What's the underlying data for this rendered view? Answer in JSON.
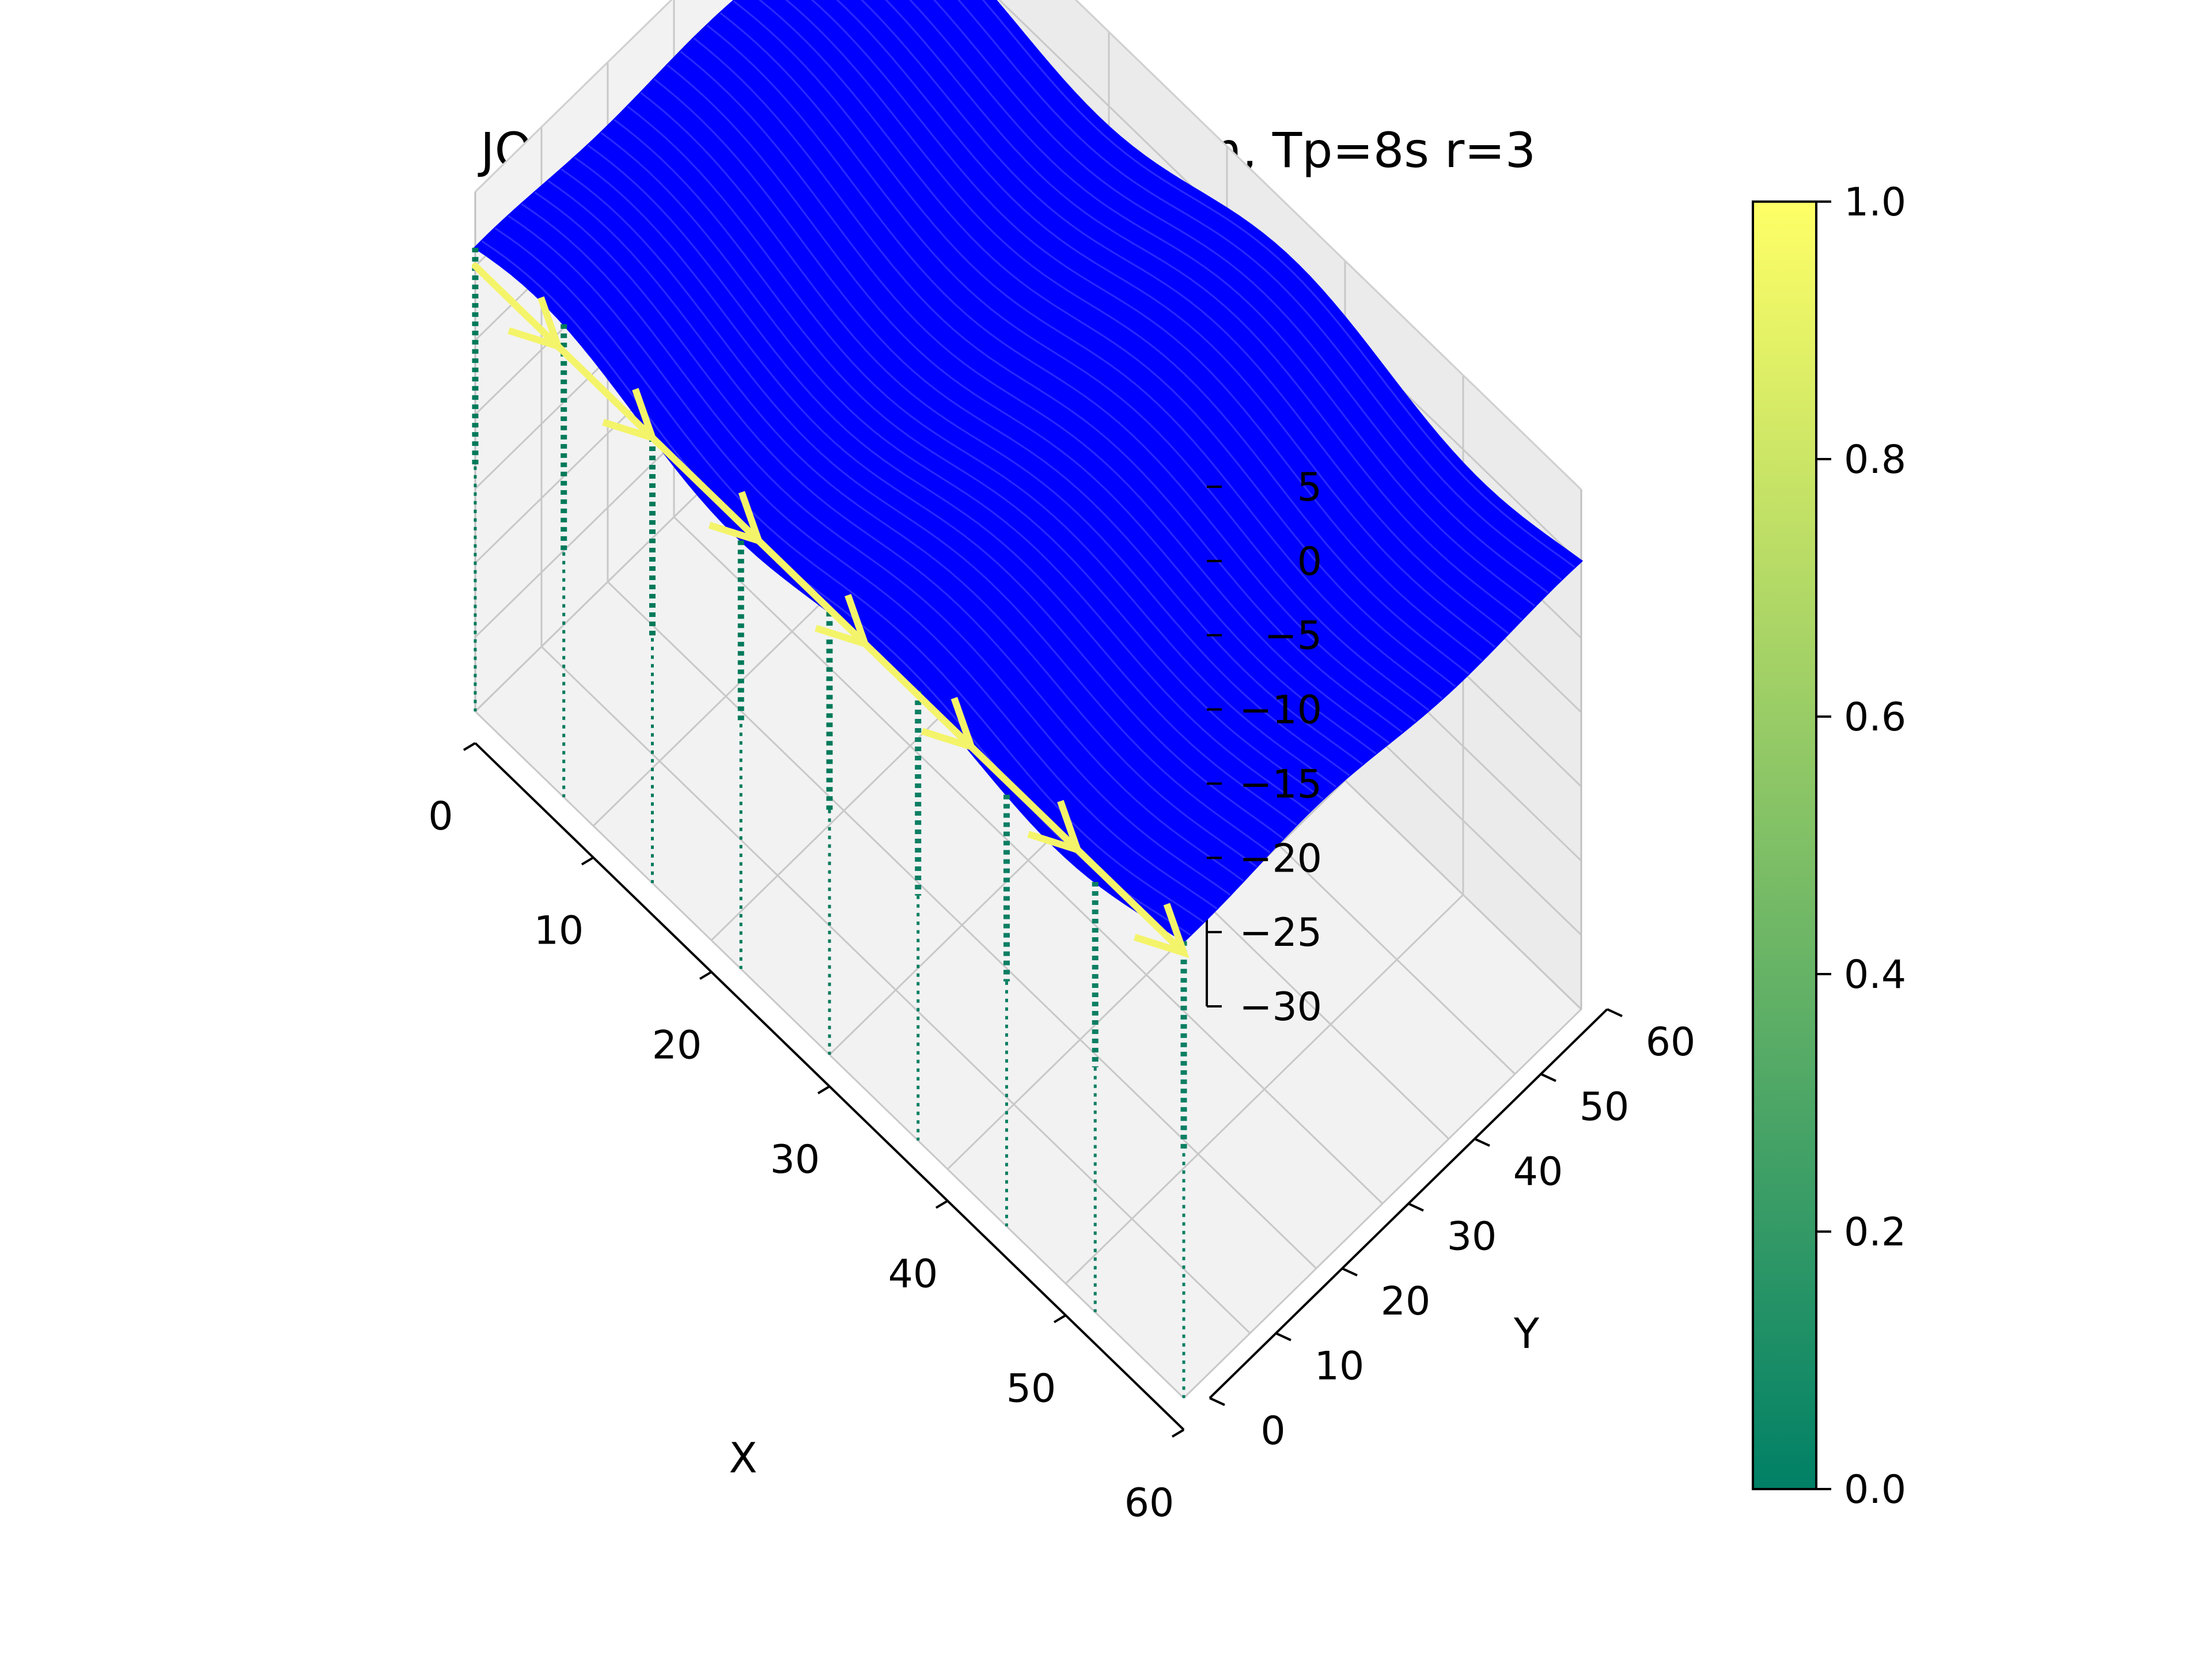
{
  "chart_data": {
    "type": "surface3d",
    "title": "JONSWAP sea condition Hs=4m, Tp=8s r=3",
    "xlabel": "X",
    "ylabel": "Y",
    "zlabel": "",
    "xlim": [
      0,
      60
    ],
    "ylim": [
      0,
      60
    ],
    "zlim": [
      -30,
      5
    ],
    "x_ticks": [
      "0",
      "10",
      "20",
      "30",
      "40",
      "50",
      "60"
    ],
    "y_ticks": [
      "0",
      "10",
      "20",
      "30",
      "40",
      "50",
      "60"
    ],
    "z_ticks": [
      "5",
      "0",
      "−5",
      "−10",
      "−15",
      "−20",
      "−25",
      "−30"
    ],
    "grid": true,
    "surface": {
      "color": "#0000ff",
      "description_values": {
        "wave_amplitude": 2,
        "wave_direction_deg": 0
      }
    },
    "arrow_line": {
      "color": "#f4f46a",
      "y": 0,
      "z": 0,
      "x_start": 0,
      "x_end": 60,
      "arrow_x": [
        7,
        15,
        24,
        33,
        42,
        51,
        60
      ]
    },
    "vertical_lines": {
      "colormap": "summer",
      "x": [
        0,
        7.5,
        15,
        22.5,
        30,
        37.5,
        45,
        52.5,
        60
      ],
      "y": 0,
      "z_bottom": -30,
      "z_top": 0
    },
    "colorbar": {
      "colormap": "summer",
      "min_color": "#008066",
      "max_color": "#ffff66",
      "ticks": [
        "0.0",
        "0.2",
        "0.4",
        "0.6",
        "0.8",
        "1.0"
      ],
      "range": [
        0,
        1
      ]
    }
  }
}
